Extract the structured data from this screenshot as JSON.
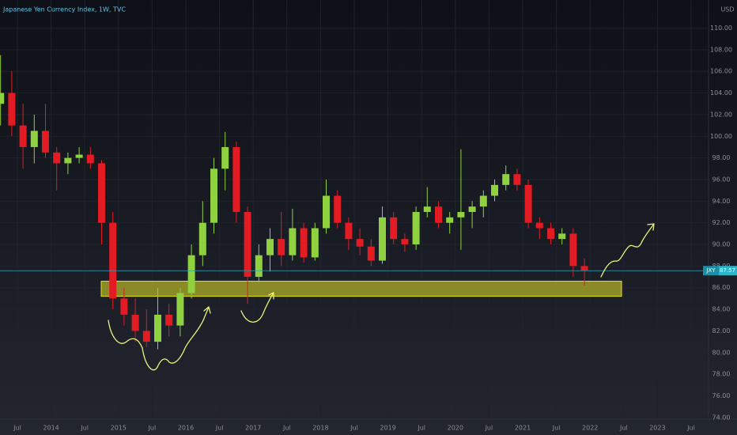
{
  "chart_data": {
    "type": "candlestick",
    "title": "Japanese Yen Currency Index, 1W, TVC",
    "currency": "USD",
    "up_color": "#8fd13f",
    "down_color": "#e31b23",
    "x": [
      "2013-04",
      "2013-06",
      "2013-08",
      "2013-10",
      "2013-12",
      "2014-02",
      "2014-04",
      "2014-06",
      "2014-08",
      "2014-10",
      "2014-12",
      "2015-02",
      "2015-04",
      "2015-06",
      "2015-08",
      "2015-10",
      "2015-12",
      "2016-02",
      "2016-04",
      "2016-06",
      "2016-08",
      "2016-10",
      "2016-12",
      "2017-02",
      "2017-04",
      "2017-06",
      "2017-08",
      "2017-10",
      "2017-12",
      "2018-02",
      "2018-04",
      "2018-06",
      "2018-08",
      "2018-10",
      "2018-12",
      "2019-02",
      "2019-04",
      "2019-06",
      "2019-08",
      "2019-10",
      "2019-12",
      "2020-02",
      "2020-04",
      "2020-06",
      "2020-08",
      "2020-10",
      "2020-12",
      "2021-02",
      "2021-04",
      "2021-06",
      "2021-08",
      "2021-10",
      "2021-12"
    ],
    "open": [
      103,
      104,
      101,
      99,
      100.5,
      98.5,
      97.5,
      98,
      98.3,
      97.5,
      92,
      85,
      83.5,
      82,
      81,
      83.5,
      82.5,
      85.5,
      89,
      92,
      97,
      99,
      93,
      87,
      89,
      90.5,
      89,
      91.5,
      88.8,
      91.5,
      94.5,
      92,
      90.5,
      89.8,
      88.5,
      92.5,
      90.5,
      90,
      93,
      93.5,
      92,
      92.5,
      93,
      93.5,
      94.5,
      95.5,
      96.5,
      95.5,
      92,
      91.5,
      90.5,
      91,
      88
    ],
    "high": [
      107.5,
      106,
      103,
      102,
      103,
      99,
      98.5,
      99,
      99,
      97.8,
      93,
      86,
      85,
      84,
      86,
      84.5,
      86,
      90,
      94,
      98,
      100.4,
      99.5,
      93.5,
      90,
      91.5,
      93,
      93.3,
      92,
      92,
      96,
      95,
      92.5,
      91.5,
      90.5,
      93.5,
      93,
      91,
      93.5,
      95.3,
      94,
      93,
      98.8,
      94,
      95,
      96,
      97.3,
      97,
      96,
      92.5,
      92,
      91.5,
      91.5,
      88.7
    ],
    "low": [
      101,
      100,
      97,
      97.5,
      98,
      95,
      96.5,
      97.5,
      97,
      90,
      84,
      82.5,
      81,
      80.5,
      80.3,
      81.5,
      81.5,
      85,
      88,
      91,
      95,
      92,
      84.5,
      86.5,
      87.5,
      88,
      88.5,
      88.3,
      88.5,
      91,
      91.5,
      89.5,
      89,
      88,
      88.2,
      90,
      89.3,
      89.5,
      92.5,
      91.5,
      91,
      89.5,
      91.5,
      92.5,
      94,
      95,
      95,
      91.5,
      90.5,
      90,
      90,
      87,
      86.2
    ],
    "close": [
      104,
      101,
      99,
      100.5,
      98.5,
      97.5,
      98,
      98.3,
      97.5,
      92,
      85,
      83.5,
      82,
      81,
      83.5,
      82.5,
      85.5,
      89,
      92,
      97,
      99,
      93,
      87,
      89,
      90.5,
      89,
      91.5,
      88.8,
      91.5,
      94.5,
      92,
      90.5,
      89.8,
      88.5,
      92.5,
      90.5,
      90,
      93,
      93.5,
      92,
      92.5,
      93,
      93.5,
      94.5,
      95.5,
      96.5,
      95.5,
      92,
      91.5,
      90.5,
      91,
      88,
      87.6
    ],
    "last_price": 87.57,
    "last_price_label": "JXY",
    "zone": [
      85.2,
      86.6
    ],
    "ylim": [
      73.4,
      112.6
    ],
    "yticks": [
      {
        "value": 74,
        "label": "74.00"
      },
      {
        "value": 76,
        "label": "76.00"
      },
      {
        "value": 78,
        "label": "78.00"
      },
      {
        "value": 80,
        "label": "80.00"
      },
      {
        "value": 82,
        "label": "82.00"
      },
      {
        "value": 84,
        "label": "84.00"
      },
      {
        "value": 86,
        "label": "86.00"
      },
      {
        "value": 88,
        "label": "88.00"
      },
      {
        "value": 90,
        "label": "90.00"
      },
      {
        "value": 92,
        "label": "92.00"
      },
      {
        "value": 94,
        "label": "94.00"
      },
      {
        "value": 96,
        "label": "96.00"
      },
      {
        "value": 98,
        "label": "98.00"
      },
      {
        "value": 100,
        "label": "100.00"
      },
      {
        "value": 102,
        "label": "102.00"
      },
      {
        "value": 104,
        "label": "104.00"
      },
      {
        "value": 106,
        "label": "106.00"
      },
      {
        "value": 108,
        "label": "108.00"
      },
      {
        "value": 110,
        "label": "110.00"
      }
    ],
    "xticks": [
      {
        "value": "2013-07",
        "label": "Jul"
      },
      {
        "value": "2014-01",
        "label": "2014"
      },
      {
        "value": "2014-07",
        "label": "Jul"
      },
      {
        "value": "2015-01",
        "label": "2015"
      },
      {
        "value": "2015-07",
        "label": "Jul"
      },
      {
        "value": "2016-01",
        "label": "2016"
      },
      {
        "value": "2016-07",
        "label": "Jul"
      },
      {
        "value": "2017-01",
        "label": "2017"
      },
      {
        "value": "2017-07",
        "label": "Jul"
      },
      {
        "value": "2018-01",
        "label": "2018"
      },
      {
        "value": "2018-07",
        "label": "Jul"
      },
      {
        "value": "2019-01",
        "label": "2019"
      },
      {
        "value": "2019-07",
        "label": "Jul"
      },
      {
        "value": "2020-01",
        "label": "2020"
      },
      {
        "value": "2020-07",
        "label": "Jul"
      },
      {
        "value": "2021-01",
        "label": "2021"
      },
      {
        "value": "2021-07",
        "label": "Jul"
      },
      {
        "value": "2022-01",
        "label": "2022"
      },
      {
        "value": "2022-07",
        "label": "Jul"
      },
      {
        "value": "2023-01",
        "label": "2023"
      },
      {
        "value": "2023-07",
        "label": "Jul"
      }
    ],
    "grid": true
  }
}
